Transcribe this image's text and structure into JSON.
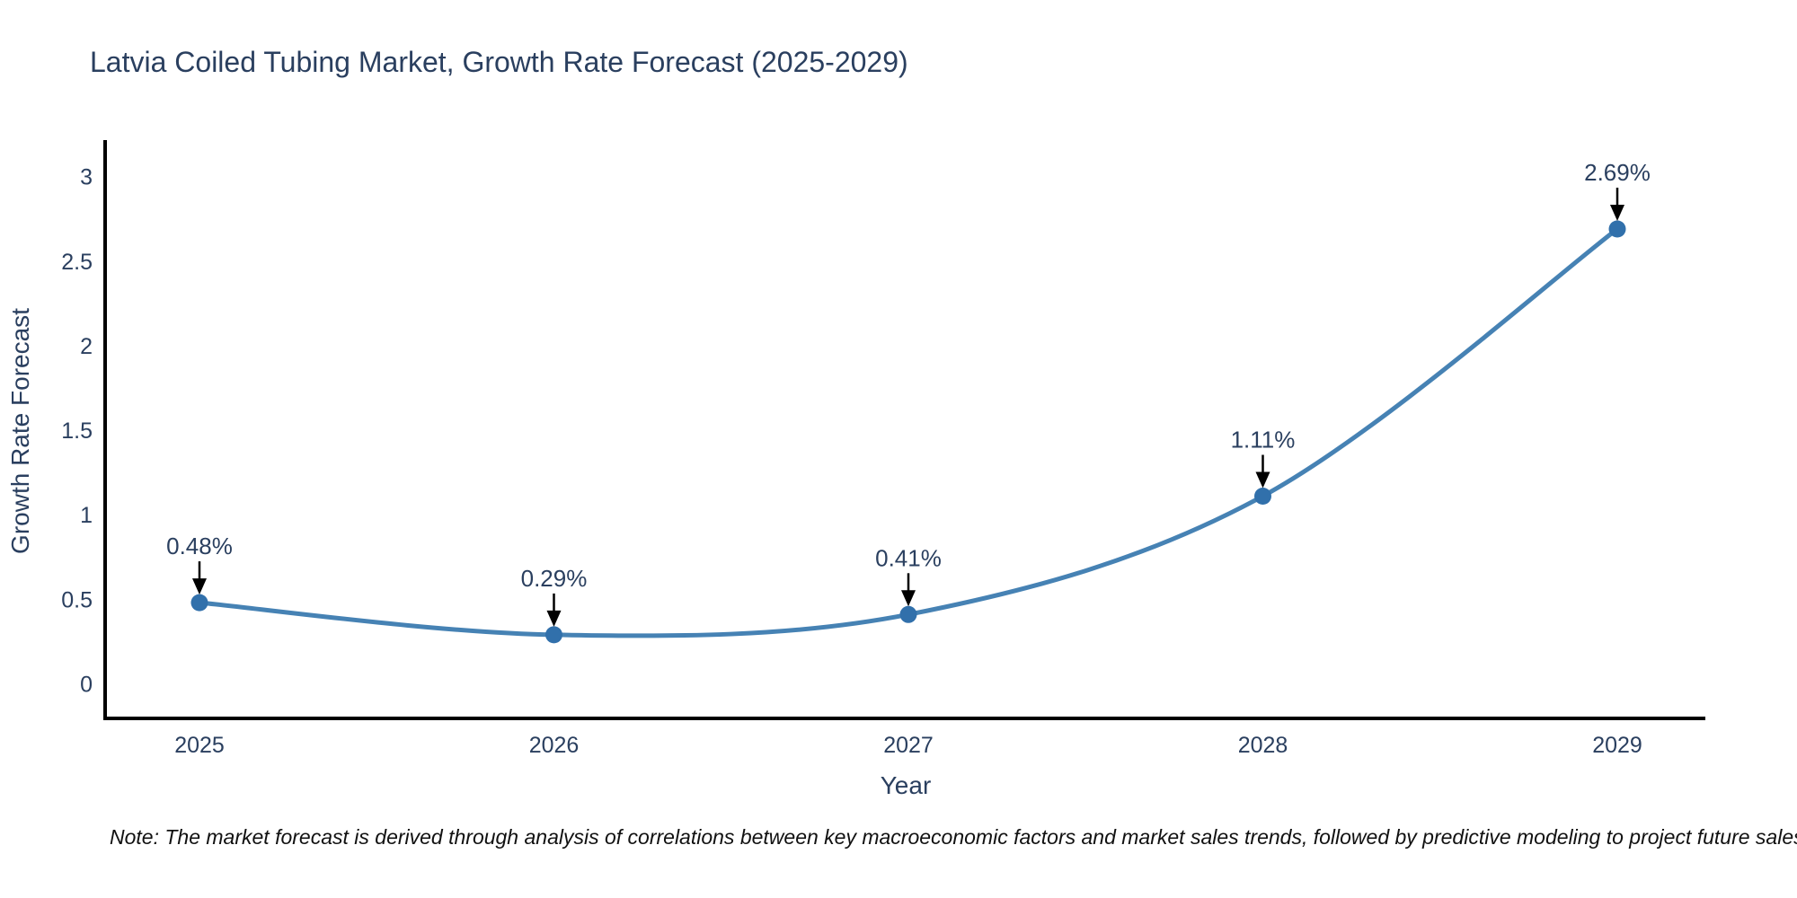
{
  "title": "Latvia Coiled Tubing Market, Growth Rate Forecast (2025-2029)",
  "note": "Note: The market forecast is derived through analysis of correlations between key macroeconomic factors and market sales trends, followed by predictive modeling to project future sales",
  "chart_data": {
    "type": "line",
    "title": "Latvia Coiled Tubing Market, Growth Rate Forecast (2025-2029)",
    "xlabel": "Year",
    "ylabel": "Growth Rate Forecast",
    "x": [
      2025,
      2026,
      2027,
      2028,
      2029
    ],
    "values": [
      0.48,
      0.29,
      0.41,
      1.11,
      2.69
    ],
    "point_labels": [
      "0.48%",
      "0.29%",
      "0.41%",
      "1.11%",
      "2.69%"
    ],
    "series": [
      {
        "name": "Growth Rate Forecast",
        "values": [
          0.48,
          0.29,
          0.41,
          1.11,
          2.69
        ]
      }
    ],
    "yticks": [
      0,
      0.5,
      1,
      1.5,
      2,
      2.5,
      3
    ],
    "ytick_labels": [
      "0",
      "0.5",
      "1",
      "1.5",
      "2",
      "2.5",
      "3"
    ],
    "xtick_labels": [
      "2025",
      "2026",
      "2027",
      "2028",
      "2029"
    ],
    "ylim": [
      -0.2,
      3.2
    ],
    "grid": false,
    "legend_position": "none",
    "line_shape": "spline",
    "annotation_arrows": true,
    "colors": {
      "line": "#4682b4",
      "marker": "#3170ab",
      "arrow": "#000000",
      "axis": "#000000",
      "text": "#2a3f5f",
      "note": "#111111",
      "background": "#ffffff"
    }
  }
}
